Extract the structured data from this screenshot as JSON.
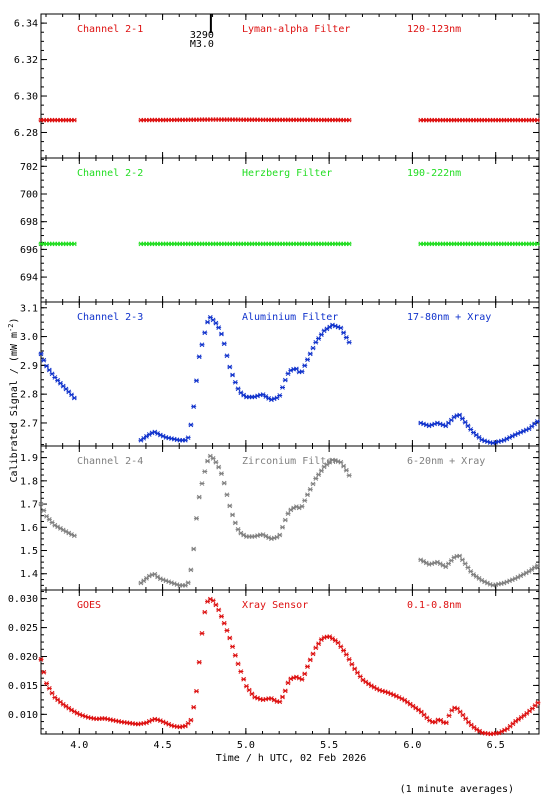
{
  "chart_data": {
    "type": "scatter",
    "xlabel": "Time / h UTC, 02 Feb 2026",
    "ylabel": "Calibrated Signal / (mW m",
    "ylabel_sup": "-2",
    "ylabel_close": ")",
    "footnote": "(1 minute averages)",
    "xlim": [
      3.77,
      6.76
    ],
    "xticks": [
      4.0,
      4.5,
      5.0,
      5.5,
      6.0,
      6.5
    ],
    "xtick_labels": [
      "4.0",
      "4.5",
      "5.0",
      "5.5",
      "6.0",
      "6.5"
    ],
    "flare_marker": {
      "x": 4.79,
      "label1": "3290",
      "label2": "M3.0"
    },
    "panels": [
      {
        "label": "Channel 2-1",
        "filter": "Lyman-alpha Filter",
        "band": "120-123nm",
        "color": "#dd1111",
        "ylim": [
          6.266,
          6.345
        ],
        "yticks": [
          6.28,
          6.3,
          6.32,
          6.34
        ],
        "ytick_labels": [
          "6.28",
          "6.30",
          "6.32",
          "6.34"
        ],
        "segments": [
          {
            "x": [
              3.77,
              3.85,
              3.93,
              3.98
            ],
            "y": [
              6.2868,
              6.2868,
              6.2868,
              6.2868
            ]
          },
          {
            "x": [
              4.37,
              4.6,
              4.8,
              5.0,
              5.2,
              5.4,
              5.63
            ],
            "y": [
              6.2868,
              6.2869,
              6.2871,
              6.287,
              6.2869,
              6.2869,
              6.2868
            ]
          },
          {
            "x": [
              6.05,
              6.2,
              6.4,
              6.6,
              6.76
            ],
            "y": [
              6.2868,
              6.2868,
              6.2868,
              6.2868,
              6.2868
            ]
          }
        ]
      },
      {
        "label": "Channel 2-2",
        "filter": "Herzberg Filter",
        "band": "190-222nm",
        "color": "#22dd22",
        "ylim": [
          692.2,
          702.6
        ],
        "yticks": [
          694,
          696,
          698,
          700,
          702
        ],
        "ytick_labels": [
          "694",
          "696",
          "698",
          "700",
          "702"
        ],
        "segments": [
          {
            "x": [
              3.77,
              3.85,
              3.93,
              3.98
            ],
            "y": [
              696.4,
              696.4,
              696.4,
              696.4
            ]
          },
          {
            "x": [
              4.37,
              4.6,
              4.8,
              5.0,
              5.2,
              5.4,
              5.63
            ],
            "y": [
              696.4,
              696.4,
              696.4,
              696.4,
              696.4,
              696.4,
              696.4
            ]
          },
          {
            "x": [
              6.05,
              6.2,
              6.4,
              6.6,
              6.76
            ],
            "y": [
              696.4,
              696.4,
              696.4,
              696.4,
              696.4
            ]
          }
        ]
      },
      {
        "label": "Channel 2-3",
        "filter": "Aluminium Filter",
        "band": "17-80nm + Xray",
        "color": "#1133cc",
        "ylim": [
          2.62,
          3.12
        ],
        "yticks": [
          2.7,
          2.8,
          2.9,
          3.0,
          3.1
        ],
        "ytick_labels": [
          "2.7",
          "2.8",
          "2.9",
          "3.0",
          "3.1"
        ],
        "segments": [
          {
            "x": [
              3.77,
              3.8,
              3.85,
              3.9,
              3.95,
              3.98
            ],
            "y": [
              2.94,
              2.9,
              2.86,
              2.83,
              2.8,
              2.78
            ]
          },
          {
            "x": [
              4.37,
              4.42,
              4.45,
              4.48,
              4.52,
              4.6,
              4.65,
              4.68,
              4.7,
              4.72,
              4.74,
              4.76,
              4.78,
              4.8,
              4.83,
              4.86,
              4.9,
              4.93,
              4.96,
              5.0,
              5.05,
              5.1,
              5.15,
              5.2,
              5.23,
              5.26,
              5.3,
              5.33,
              5.37,
              5.42,
              5.47,
              5.52,
              5.57,
              5.6,
              5.63
            ],
            "y": [
              2.64,
              2.66,
              2.67,
              2.66,
              2.65,
              2.64,
              2.64,
              2.72,
              2.83,
              2.93,
              2.98,
              3.03,
              3.07,
              3.06,
              3.04,
              3.0,
              2.9,
              2.85,
              2.81,
              2.79,
              2.79,
              2.8,
              2.78,
              2.79,
              2.84,
              2.88,
              2.89,
              2.87,
              2.92,
              2.98,
              3.02,
              3.04,
              3.03,
              3.0,
              2.97
            ]
          },
          {
            "x": [
              6.05,
              6.1,
              6.15,
              6.2,
              6.25,
              6.28,
              6.32,
              6.36,
              6.42,
              6.48,
              6.55,
              6.62,
              6.7,
              6.76
            ],
            "y": [
              2.7,
              2.69,
              2.7,
              2.69,
              2.72,
              2.73,
              2.7,
              2.67,
              2.64,
              2.63,
              2.64,
              2.66,
              2.68,
              2.71
            ]
          }
        ]
      },
      {
        "label": "Channel 2-4",
        "filter": "Zirconium Filter",
        "band": "6-20nm + Xray",
        "color": "#808080",
        "ylim": [
          1.33,
          1.95
        ],
        "yticks": [
          1.4,
          1.5,
          1.6,
          1.7,
          1.8,
          1.9
        ],
        "ytick_labels": [
          "1.4",
          "1.5",
          "1.6",
          "1.7",
          "1.8",
          "1.9"
        ],
        "segments": [
          {
            "x": [
              3.77,
              3.8,
              3.85,
              3.9,
              3.95,
              3.98
            ],
            "y": [
              1.7,
              1.65,
              1.61,
              1.59,
              1.57,
              1.56
            ]
          },
          {
            "x": [
              4.37,
              4.42,
              4.45,
              4.48,
              4.52,
              4.6,
              4.65,
              4.68,
              4.7,
              4.72,
              4.74,
              4.76,
              4.78,
              4.8,
              4.83,
              4.86,
              4.9,
              4.93,
              4.96,
              5.0,
              5.05,
              5.1,
              5.15,
              5.2,
              5.23,
              5.26,
              5.3,
              5.33,
              5.37,
              5.42,
              5.47,
              5.52,
              5.57,
              5.6,
              5.63
            ],
            "y": [
              1.36,
              1.39,
              1.4,
              1.38,
              1.37,
              1.35,
              1.35,
              1.45,
              1.62,
              1.73,
              1.8,
              1.86,
              1.91,
              1.9,
              1.87,
              1.82,
              1.7,
              1.63,
              1.58,
              1.56,
              1.56,
              1.57,
              1.55,
              1.56,
              1.62,
              1.67,
              1.69,
              1.68,
              1.74,
              1.81,
              1.86,
              1.89,
              1.88,
              1.85,
              1.81
            ]
          },
          {
            "x": [
              6.05,
              6.1,
              6.15,
              6.2,
              6.25,
              6.28,
              6.32,
              6.36,
              6.42,
              6.48,
              6.55,
              6.62,
              6.7,
              6.76
            ],
            "y": [
              1.46,
              1.44,
              1.45,
              1.43,
              1.47,
              1.48,
              1.44,
              1.4,
              1.37,
              1.35,
              1.36,
              1.38,
              1.41,
              1.44
            ]
          }
        ]
      },
      {
        "label": "GOES",
        "filter": "Xray Sensor",
        "band": "0.1-0.8nm",
        "color": "#dd1111",
        "ylim": [
          0.0066,
          0.0315
        ],
        "yticks": [
          0.01,
          0.015,
          0.02,
          0.025,
          0.03
        ],
        "ytick_labels": [
          "0.010",
          "0.015",
          "0.020",
          "0.025",
          "0.030"
        ],
        "segments": [
          {
            "x": [
              3.77,
              3.8,
              3.85,
              3.9,
              3.95,
              4.0,
              4.05,
              4.1,
              4.15,
              4.2,
              4.25,
              4.3,
              4.35,
              4.4,
              4.45,
              4.48,
              4.52,
              4.56,
              4.6,
              4.64,
              4.67,
              4.7,
              4.72,
              4.74,
              4.76,
              4.78,
              4.8,
              4.83,
              4.86,
              4.9,
              4.95,
              5.0,
              5.05,
              5.1,
              5.15,
              5.2,
              5.23,
              5.26,
              5.3,
              5.34,
              5.38,
              5.42,
              5.46,
              5.5,
              5.55,
              5.6,
              5.65,
              5.7,
              5.75,
              5.8,
              5.85,
              5.9,
              5.95,
              6.0,
              6.05,
              6.1,
              6.13,
              6.16,
              6.2,
              6.23,
              6.26,
              6.3,
              6.34,
              6.38,
              6.42,
              6.47,
              6.52,
              6.57,
              6.62,
              6.68,
              6.72,
              6.76
            ],
            "y": [
              0.0195,
              0.0155,
              0.013,
              0.0118,
              0.0108,
              0.01,
              0.0095,
              0.0092,
              0.0093,
              0.009,
              0.0087,
              0.0085,
              0.0083,
              0.0085,
              0.0092,
              0.009,
              0.0085,
              0.008,
              0.0078,
              0.008,
              0.009,
              0.013,
              0.019,
              0.025,
              0.029,
              0.03,
              0.0298,
              0.0285,
              0.0265,
              0.0235,
              0.019,
              0.015,
              0.013,
              0.0125,
              0.0128,
              0.012,
              0.0135,
              0.016,
              0.0165,
              0.016,
              0.019,
              0.0215,
              0.0232,
              0.0235,
              0.0225,
              0.0205,
              0.018,
              0.016,
              0.015,
              0.0142,
              0.0138,
              0.0132,
              0.0125,
              0.0115,
              0.0105,
              0.009,
              0.0085,
              0.0092,
              0.0083,
              0.0105,
              0.0113,
              0.01,
              0.0085,
              0.0075,
              0.0068,
              0.0066,
              0.0068,
              0.0075,
              0.0088,
              0.01,
              0.011,
              0.0122
            ]
          }
        ]
      }
    ]
  }
}
